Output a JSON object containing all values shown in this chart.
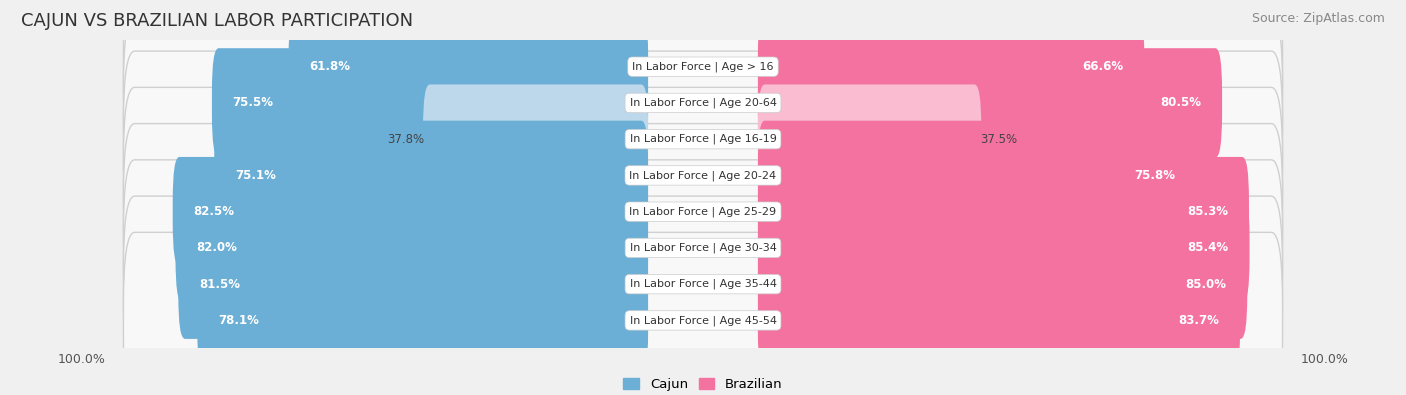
{
  "title": "CAJUN VS BRAZILIAN LABOR PARTICIPATION",
  "source": "Source: ZipAtlas.com",
  "categories": [
    "In Labor Force | Age > 16",
    "In Labor Force | Age 20-64",
    "In Labor Force | Age 16-19",
    "In Labor Force | Age 20-24",
    "In Labor Force | Age 25-29",
    "In Labor Force | Age 30-34",
    "In Labor Force | Age 35-44",
    "In Labor Force | Age 45-54"
  ],
  "cajun_values": [
    61.8,
    75.5,
    37.8,
    75.1,
    82.5,
    82.0,
    81.5,
    78.1
  ],
  "brazilian_values": [
    66.6,
    80.5,
    37.5,
    75.8,
    85.3,
    85.4,
    85.0,
    83.7
  ],
  "cajun_color": "#6baed6",
  "cajun_color_light": "#bdd7eb",
  "brazilian_color": "#f472a0",
  "brazilian_color_light": "#f9bcd1",
  "row_bg_color": "#e8e8e8",
  "row_inner_color": "#f8f8f8",
  "background_color": "#f0f0f0",
  "center_label_bg": "#ffffff",
  "max_value": 100.0,
  "bar_height": 0.62,
  "legend_cajun": "Cajun",
  "legend_brazilian": "Brazilian",
  "title_fontsize": 13,
  "label_fontsize": 8.0,
  "value_fontsize": 8.5,
  "source_fontsize": 9
}
